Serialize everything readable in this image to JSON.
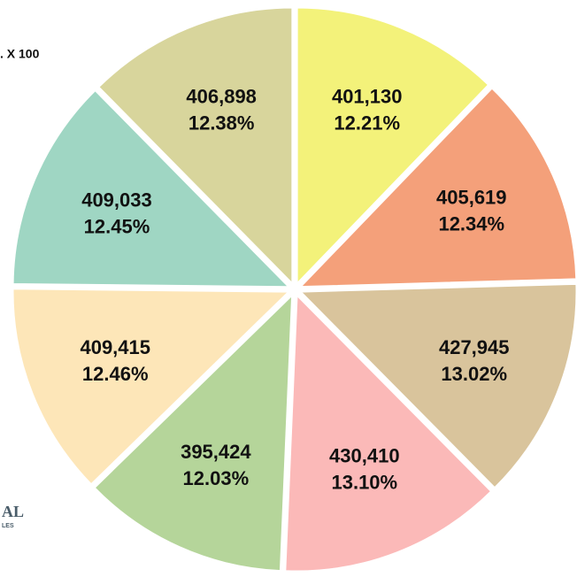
{
  "chart_data": {
    "type": "pie",
    "title": ". X 100",
    "logo_text": [
      "AL",
      "LES"
    ],
    "values": [
      401130,
      405619,
      427945,
      430410,
      395424,
      409415,
      409033,
      406898
    ],
    "value_labels": [
      "401,130",
      "405,619",
      "427,945",
      "430,410",
      "395,424",
      "409,415",
      "409,033",
      "406,898"
    ],
    "percents": [
      12.21,
      12.34,
      13.02,
      13.1,
      12.03,
      12.46,
      12.45,
      12.38
    ],
    "percent_labels": [
      "12.21%",
      "12.34%",
      "13.02%",
      "13.10%",
      "12.03%",
      "12.46%",
      "12.45%",
      "12.38%"
    ],
    "colors": [
      "#f3f27a",
      "#f4a07a",
      "#d9c49c",
      "#fbb9b8",
      "#b5d59a",
      "#fde6b8",
      "#9fd6c3",
      "#d8d59c"
    ]
  }
}
